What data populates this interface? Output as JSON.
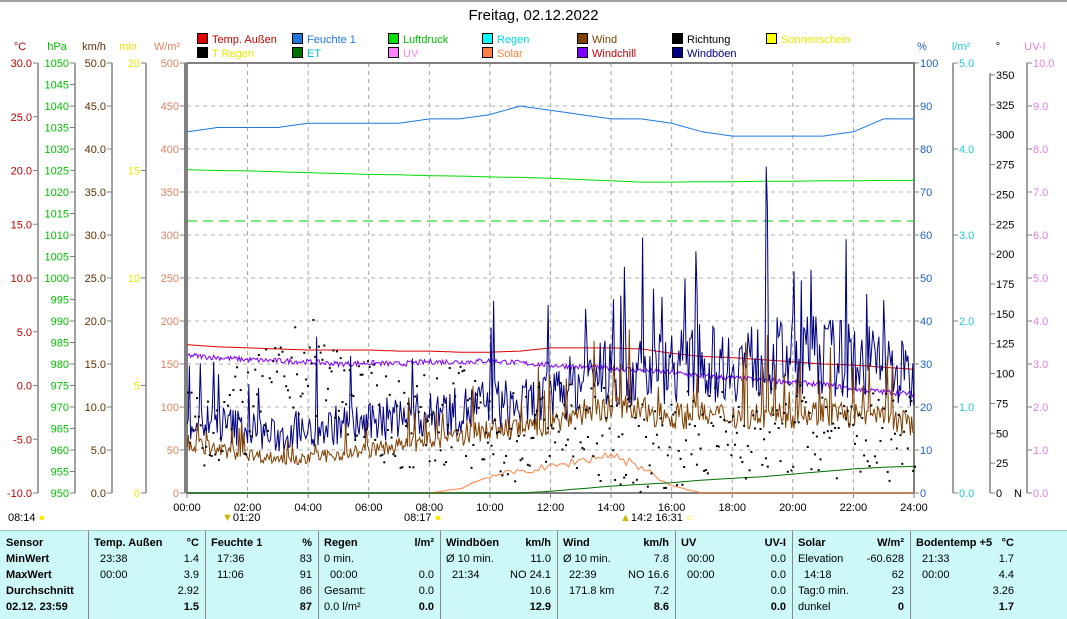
{
  "title": "Freitag, 02.12.2022",
  "legend": [
    {
      "label": "Temp. Außen",
      "color": "#e00000",
      "text_color": "#c00000"
    },
    {
      "label": "Feuchte 1",
      "color": "#1e78e0",
      "text_color": "#1e78e0"
    },
    {
      "label": "Luftdruck",
      "color": "#00e000",
      "text_color": "#00c000"
    },
    {
      "label": "Regen",
      "color": "#00ffff",
      "text_color": "#00d8e0"
    },
    {
      "label": "Wind",
      "color": "#804000",
      "text_color": "#804000"
    },
    {
      "label": "Richtung",
      "color": "#000000",
      "text_color": "#000000"
    },
    {
      "label": "Sonnenschein",
      "color": "#ffff00",
      "text_color": "#e8e800"
    },
    {
      "label": "T Regen",
      "color": "#000000",
      "text_color": "#e8e800"
    },
    {
      "label": "ET",
      "color": "#007000",
      "text_color": "#00b8c8"
    },
    {
      "label": "UV",
      "color": "#ff80ff",
      "text_color": "#ff80ff"
    },
    {
      "label": "Solar",
      "color": "#ff8040",
      "text_color": "#ff8040"
    },
    {
      "label": "Windchill",
      "color": "#8000ff",
      "text_color": "#c00000"
    },
    {
      "label": "Windböen",
      "color": "#000080",
      "text_color": "#000080"
    }
  ],
  "sun_events": {
    "sunrise": "08:14",
    "rain_marker": "01:20",
    "sun_start": "08:17",
    "solar_max": "14:2",
    "sunset": "16:31"
  },
  "chart_data": {
    "type": "line",
    "title": "Freitag, 02.12.2022",
    "xlabel": "",
    "x_range": [
      0,
      24
    ],
    "x_ticks": [
      "00:00",
      "02:00",
      "04:00",
      "06:00",
      "08:00",
      "10:00",
      "12:00",
      "14:00",
      "16:00",
      "18:00",
      "20:00",
      "22:00",
      "24:00"
    ],
    "grid": true,
    "axes": [
      {
        "id": "temp",
        "unit": "°C",
        "range": [
          -10,
          30
        ],
        "step": 5,
        "decimals": 1,
        "color": "#c00000",
        "side": "left"
      },
      {
        "id": "press",
        "unit": "hPa",
        "range": [
          950,
          1050
        ],
        "step": 5,
        "decimals": 0,
        "color": "#00c000",
        "side": "left"
      },
      {
        "id": "wind",
        "unit": "km/h",
        "range": [
          0,
          50
        ],
        "step": 5,
        "decimals": 1,
        "color": "#603000",
        "side": "left"
      },
      {
        "id": "min",
        "unit": "min",
        "range": [
          0,
          20
        ],
        "step": 5,
        "decimals": 0,
        "color": "#e8e800",
        "side": "left"
      },
      {
        "id": "solar",
        "unit": "W/m²",
        "range": [
          0,
          500
        ],
        "step": 50,
        "decimals": 0,
        "color": "#e08060",
        "side": "left"
      },
      {
        "id": "hum",
        "unit": "%",
        "range": [
          0,
          100
        ],
        "step": 10,
        "decimals": 0,
        "color": "#2060c0",
        "side": "right"
      },
      {
        "id": "rain",
        "unit": "l/m²",
        "range": [
          0,
          5
        ],
        "step": 1,
        "decimals": 1,
        "color": "#20c8d8",
        "side": "right"
      },
      {
        "id": "dir",
        "unit": "°",
        "range": [
          0,
          360
        ],
        "step": 25,
        "max_tick": 350,
        "decimals": 0,
        "color": "#000000",
        "side": "right",
        "zero_suffix": "N"
      },
      {
        "id": "uv",
        "unit": "UV-I",
        "range": [
          0,
          10
        ],
        "step": 1,
        "decimals": 1,
        "color": "#e080e0",
        "side": "right"
      }
    ],
    "hours": [
      0,
      1,
      2,
      3,
      4,
      5,
      6,
      7,
      8,
      9,
      10,
      11,
      12,
      13,
      14,
      15,
      16,
      17,
      18,
      19,
      20,
      21,
      22,
      23,
      24
    ],
    "series": [
      {
        "name": "Temp. Außen",
        "axis": "temp",
        "color": "#e00000",
        "values": [
          3.8,
          3.6,
          3.5,
          3.4,
          3.3,
          3.3,
          3.3,
          3.2,
          3.2,
          3.1,
          3.1,
          3.2,
          3.5,
          3.5,
          3.5,
          3.4,
          3.0,
          2.7,
          2.6,
          2.4,
          2.2,
          2.0,
          1.9,
          1.7,
          1.5
        ]
      },
      {
        "name": "Feuchte 1",
        "axis": "hum",
        "color": "#1e78e0",
        "values": [
          84,
          85,
          85,
          85,
          86,
          86,
          86,
          86,
          87,
          87,
          88,
          90,
          89,
          88,
          87,
          87,
          86,
          84,
          83,
          83,
          83,
          83,
          84,
          87,
          87
        ]
      },
      {
        "name": "Luftdruck",
        "axis": "press",
        "color": "#00dd00",
        "values": [
          1025.2,
          1025.0,
          1024.9,
          1024.7,
          1024.5,
          1024.3,
          1024.1,
          1024.0,
          1023.8,
          1023.7,
          1023.5,
          1023.4,
          1023.2,
          1022.9,
          1022.6,
          1022.3,
          1022.3,
          1022.4,
          1022.4,
          1022.5,
          1022.5,
          1022.6,
          1022.6,
          1022.7,
          1022.7
        ]
      },
      {
        "name": "Windchill",
        "axis": "temp",
        "color": "#8000ff",
        "values": [
          2.8,
          2.6,
          2.4,
          2.3,
          2.2,
          2.0,
          2.1,
          2.0,
          2.2,
          2.2,
          2.3,
          2.1,
          1.9,
          1.7,
          1.6,
          1.4,
          1.2,
          0.9,
          0.7,
          0.5,
          0.3,
          0.1,
          -0.3,
          -0.6,
          -0.8
        ]
      },
      {
        "name": "Windböen",
        "axis": "wind",
        "color": "#000080",
        "values": [
          8.5,
          8,
          7.5,
          6.5,
          7,
          8,
          8,
          9,
          9,
          9.5,
          10.5,
          10,
          11,
          13,
          14,
          14,
          15,
          15,
          15,
          15.5,
          16,
          16,
          15.5,
          15,
          13
        ]
      },
      {
        "name": "Wind",
        "axis": "wind",
        "color": "#804000",
        "values": [
          6,
          5,
          4.5,
          4,
          4,
          4.5,
          5,
          5.5,
          6,
          6.5,
          7.5,
          7.5,
          8,
          9.5,
          10,
          9.5,
          9,
          9,
          9,
          9,
          9,
          9.5,
          9,
          8.5,
          8
        ]
      },
      {
        "name": "Solar",
        "axis": "solar",
        "color": "#ff8040",
        "values": [
          0,
          0,
          0,
          0,
          0,
          0,
          0,
          0,
          0,
          5,
          20,
          25,
          30,
          38,
          45,
          30,
          8,
          0,
          0,
          0,
          0,
          0,
          0,
          0,
          0
        ]
      },
      {
        "name": "ET",
        "axis": "rain",
        "color": "#007000",
        "values": [
          0,
          0,
          0,
          0,
          0,
          0,
          0,
          0,
          0,
          0,
          0,
          0,
          0.02,
          0.05,
          0.08,
          0.1,
          0.12,
          0.15,
          0.17,
          0.19,
          0.22,
          0.25,
          0.28,
          0.3,
          0.31
        ]
      },
      {
        "name": "Richtung",
        "axis": "dir",
        "color": "#000000",
        "type": "scatter",
        "values": [
          60,
          60,
          70,
          90,
          110,
          90,
          70,
          60,
          60,
          70,
          40,
          50,
          60,
          50,
          50,
          40,
          45,
          50,
          55,
          50,
          55,
          50,
          50,
          50,
          55
        ]
      }
    ],
    "reference_line": {
      "axis": "press",
      "value": 1013.25,
      "color": "#00cc00"
    }
  },
  "table": {
    "columns": [
      {
        "header": "Sensor",
        "unit": "",
        "rows": [
          [
            "MinWert",
            ""
          ],
          [
            "MaxWert",
            ""
          ],
          [
            "Durchschnitt",
            ""
          ],
          [
            "02.12. 23:59",
            ""
          ]
        ]
      },
      {
        "header": "Temp. Außen",
        "unit": "°C",
        "rows": [
          [
            "23:38",
            "1.4"
          ],
          [
            "00:00",
            "3.9"
          ],
          [
            "",
            "2.92"
          ],
          [
            "",
            "1.5"
          ]
        ]
      },
      {
        "header": "Feuchte 1",
        "unit": "%",
        "rows": [
          [
            "17:36",
            "83"
          ],
          [
            "11:06",
            "91"
          ],
          [
            "",
            "86"
          ],
          [
            "",
            "87"
          ]
        ]
      },
      {
        "header": "Regen",
        "unit": "l/m²",
        "rows": [
          [
            "0 min.",
            ""
          ],
          [
            "00:00",
            "0.0"
          ],
          [
            "Gesamt:",
            "0.0"
          ],
          [
            "0.0 l/m²",
            "0.0"
          ]
        ]
      },
      {
        "header": "Windböen",
        "unit": "km/h",
        "rows": [
          [
            "Ø 10 min.",
            "11.0"
          ],
          [
            "21:34",
            "NO 24.1"
          ],
          [
            "",
            "10.6"
          ],
          [
            "",
            "12.9"
          ]
        ]
      },
      {
        "header": "Wind",
        "unit": "km/h",
        "rows": [
          [
            "Ø 10 min.",
            "7.8"
          ],
          [
            "22:39",
            "NO 16.6"
          ],
          [
            "171.8 km",
            "7.2"
          ],
          [
            "",
            "8.6"
          ]
        ]
      },
      {
        "header": "UV",
        "unit": "UV-I",
        "rows": [
          [
            "00:00",
            "0.0"
          ],
          [
            "00:00",
            "0.0"
          ],
          [
            "",
            "0.0"
          ],
          [
            "",
            "0.0"
          ]
        ]
      },
      {
        "header": "Solar",
        "unit": "W/m²",
        "rows": [
          [
            "Elevation",
            "-60.628"
          ],
          [
            "14:18",
            "62"
          ],
          [
            "Tag:0 min.",
            "23"
          ],
          [
            "dunkel",
            "0"
          ]
        ]
      },
      {
        "header": "Bodentemp +5",
        "unit": "°C",
        "rows": [
          [
            "21:33",
            "1.7"
          ],
          [
            "00:00",
            "4.4"
          ],
          [
            "",
            "3.26"
          ],
          [
            "",
            "1.7"
          ]
        ]
      }
    ]
  }
}
